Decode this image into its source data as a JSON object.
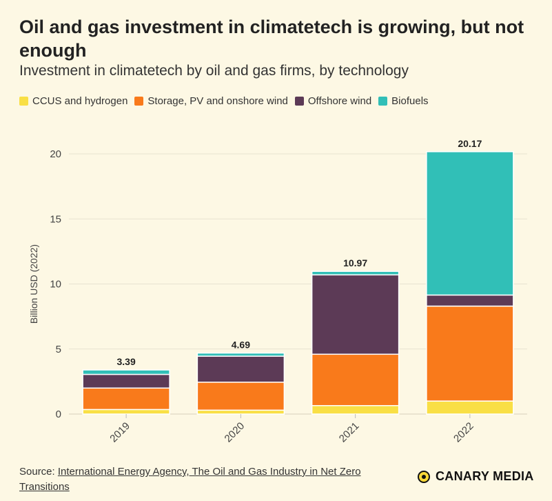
{
  "title": "Oil and gas investment in climatetech is growing, but not enough",
  "subtitle": "Investment in climatetech by oil and gas firms, by technology",
  "source_prefix": "Source: ",
  "source_link": "International Energy Agency, The Oil and Gas Industry in Net Zero Transitions",
  "brand": "CANARY MEDIA",
  "chart_data": {
    "type": "bar",
    "stacked": true,
    "categories": [
      "2019",
      "2020",
      "2021",
      "2022"
    ],
    "series": [
      {
        "name": "CCUS and hydrogen",
        "color": "#f9df45",
        "values": [
          0.35,
          0.3,
          0.65,
          1.0
        ]
      },
      {
        "name": "Storage, PV and onshore wind",
        "color": "#f97a1b",
        "values": [
          1.65,
          2.15,
          3.95,
          7.3
        ]
      },
      {
        "name": "Offshore wind",
        "color": "#5c3a56",
        "values": [
          1.05,
          2.0,
          6.1,
          0.85
        ]
      },
      {
        "name": "Biofuels",
        "color": "#31bfb7",
        "values": [
          0.34,
          0.24,
          0.27,
          11.02
        ]
      }
    ],
    "totals": [
      "3.39",
      "4.69",
      "10.97",
      "20.17"
    ],
    "ylabel": "Billion USD (2022)",
    "xlabel": "",
    "ylim": [
      0,
      21
    ],
    "yticks": [
      0,
      5,
      10,
      15,
      20
    ],
    "grid": true,
    "legend_position": "top"
  }
}
